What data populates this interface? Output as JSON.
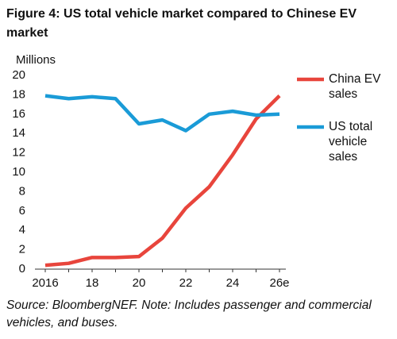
{
  "chart_data": {
    "type": "line",
    "title": "Figure 4:  US total vehicle market compared to Chinese EV market",
    "y_label": "Millions",
    "note": "Source: BloombergNEF. Note: Includes passenger and commercial vehicles, and buses.",
    "categories": [
      "2016",
      null,
      "18",
      null,
      "20",
      null,
      "22",
      null,
      "24",
      null,
      "26e"
    ],
    "series": [
      {
        "name": "China EV sales",
        "color": "#e8453c",
        "values": [
          0.4,
          0.6,
          1.2,
          1.2,
          1.3,
          3.2,
          6.3,
          8.5,
          11.8,
          15.5,
          17.9
        ]
      },
      {
        "name": "US total vehicle sales",
        "color": "#1a9bd7",
        "values": [
          17.9,
          17.6,
          17.8,
          17.6,
          15.0,
          15.4,
          14.3,
          16.0,
          16.3,
          15.9,
          16.0
        ]
      }
    ],
    "ylim": [
      0,
      20
    ],
    "yticks": [
      0,
      2,
      4,
      6,
      8,
      10,
      12,
      14,
      16,
      18,
      20
    ],
    "legend": "right"
  }
}
